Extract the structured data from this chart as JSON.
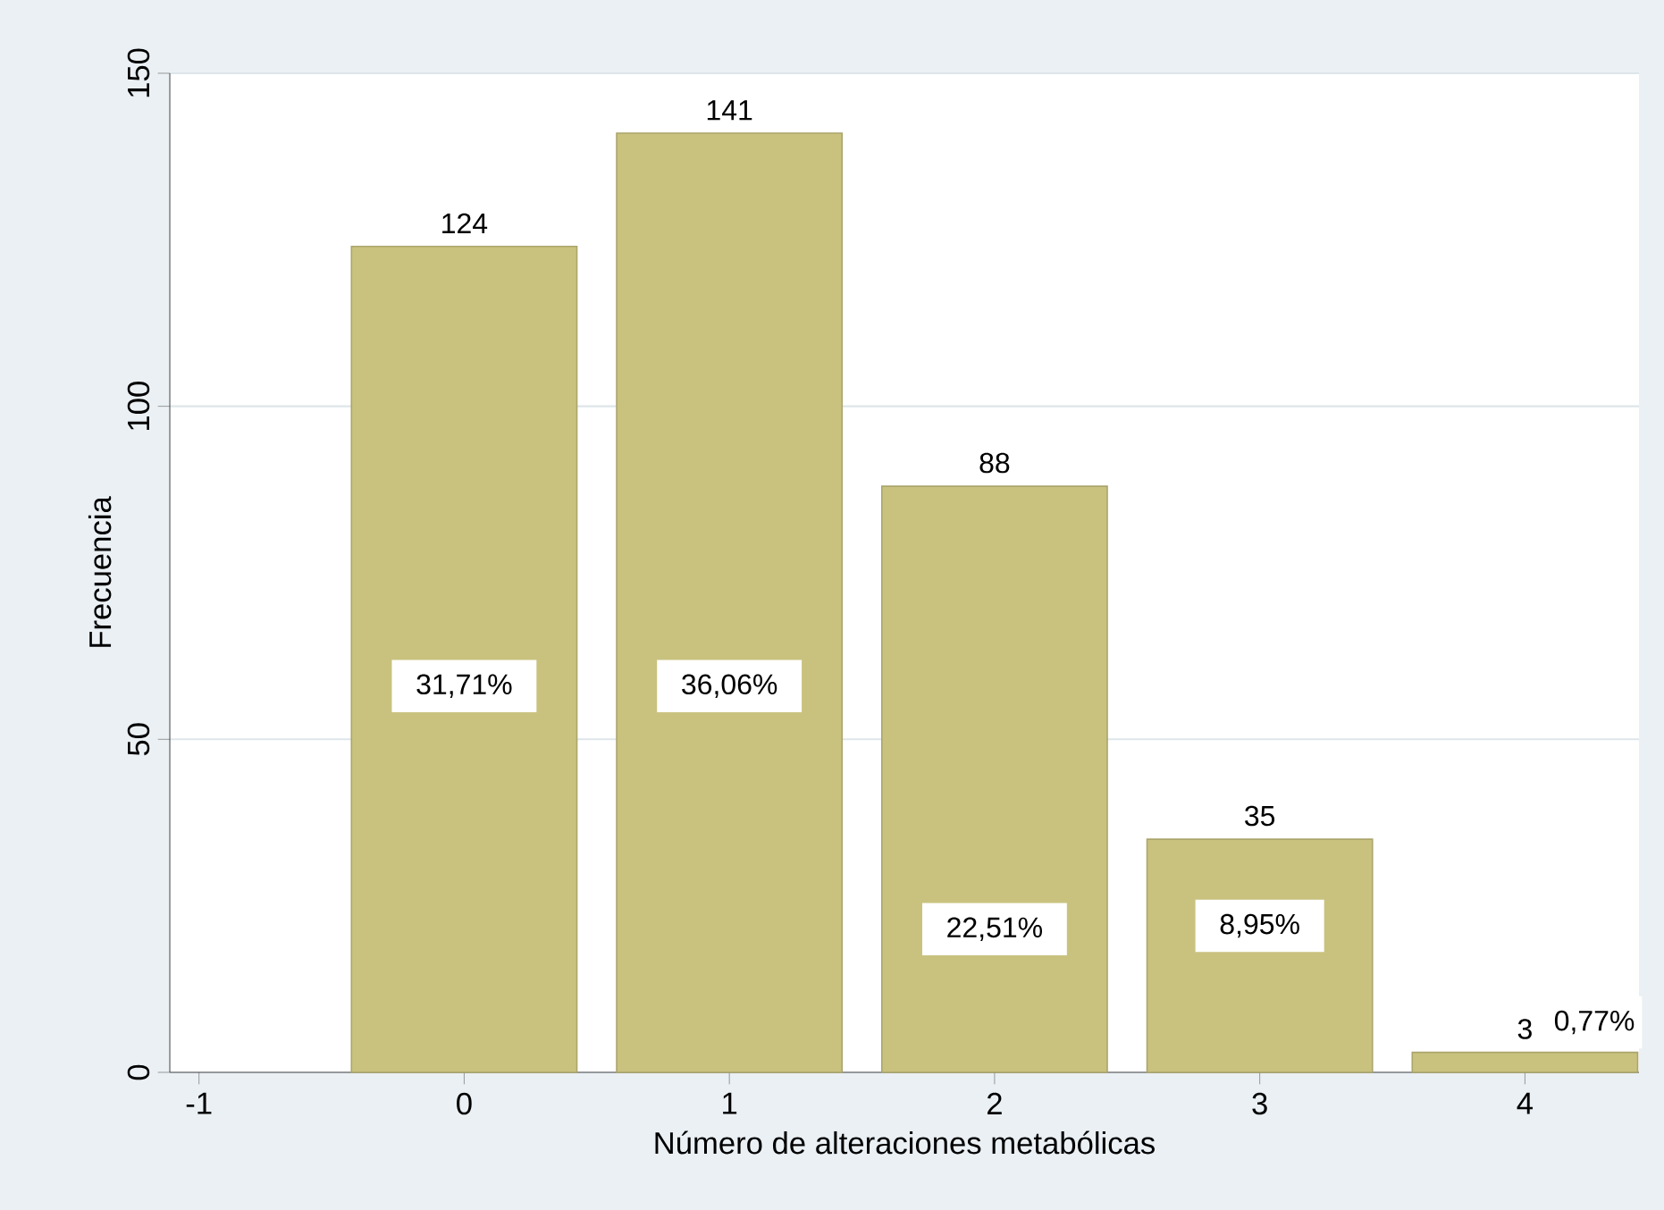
{
  "chart_data": {
    "type": "bar",
    "xlabel": "Número de alteraciones metabólicas",
    "ylabel": "Frecuencia",
    "x": [
      0,
      1,
      2,
      3,
      4
    ],
    "values": [
      124,
      141,
      88,
      35,
      3
    ],
    "color": "#c9c27f",
    "data_labels": true,
    "xlim": [
      -1.11,
      4.43
    ],
    "ylim": [
      0,
      150
    ],
    "xticks": [
      -1,
      0,
      1,
      2,
      3,
      4
    ],
    "yticks": [
      0,
      50,
      100,
      150
    ],
    "grid": "y",
    "annotations": [
      "31,71%",
      "36,06%",
      "22,51%",
      "8,95%",
      "0,77%"
    ]
  }
}
